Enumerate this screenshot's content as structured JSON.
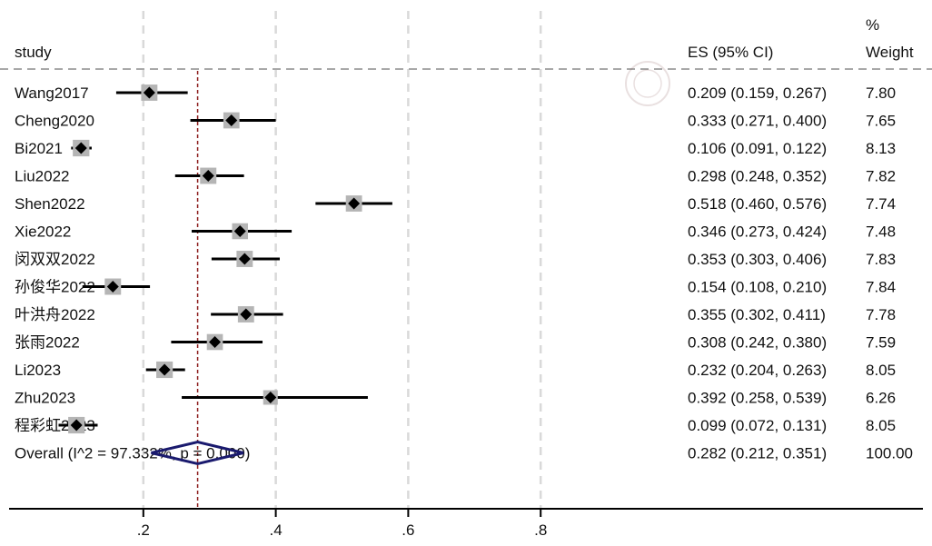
{
  "chart_data": {
    "type": "forest",
    "headers": {
      "study": "study",
      "es": "ES (95% CI)",
      "weight_top": "%",
      "weight_bottom": "Weight"
    },
    "xlim": [
      0,
      0.8
    ],
    "xticks": [
      0.2,
      0.4,
      0.6,
      0.8
    ],
    "xtick_labels": [
      ".2",
      ".4",
      ".6",
      ".8"
    ],
    "reference_line": 0.282,
    "grid": true,
    "colors": {
      "point": "#000000",
      "weight_box": "#b5b5b5",
      "ci": "#000000",
      "reference": "#8b1a1a",
      "diamond": "#1a1a6e",
      "grid": "#d9d9d9"
    },
    "studies": [
      {
        "label": "Wang2017",
        "es": 0.209,
        "lo": 0.159,
        "hi": 0.267,
        "es_text": "0.209 (0.159, 0.267)",
        "weight": 7.8,
        "weight_text": "7.80"
      },
      {
        "label": "Cheng2020",
        "es": 0.333,
        "lo": 0.271,
        "hi": 0.4,
        "es_text": "0.333 (0.271, 0.400)",
        "weight": 7.65,
        "weight_text": "7.65"
      },
      {
        "label": "Bi2021",
        "es": 0.106,
        "lo": 0.091,
        "hi": 0.122,
        "es_text": "0.106 (0.091, 0.122)",
        "weight": 8.13,
        "weight_text": "8.13"
      },
      {
        "label": "Liu2022",
        "es": 0.298,
        "lo": 0.248,
        "hi": 0.352,
        "es_text": "0.298 (0.248, 0.352)",
        "weight": 7.82,
        "weight_text": "7.82"
      },
      {
        "label": "Shen2022",
        "es": 0.518,
        "lo": 0.46,
        "hi": 0.576,
        "es_text": "0.518 (0.460, 0.576)",
        "weight": 7.74,
        "weight_text": "7.74"
      },
      {
        "label": "Xie2022",
        "es": 0.346,
        "lo": 0.273,
        "hi": 0.424,
        "es_text": "0.346 (0.273, 0.424)",
        "weight": 7.48,
        "weight_text": "7.48"
      },
      {
        "label": "闵双双2022",
        "es": 0.353,
        "lo": 0.303,
        "hi": 0.406,
        "es_text": "0.353 (0.303, 0.406)",
        "weight": 7.83,
        "weight_text": "7.83"
      },
      {
        "label": "孙俊华2022",
        "es": 0.154,
        "lo": 0.108,
        "hi": 0.21,
        "es_text": "0.154 (0.108, 0.210)",
        "weight": 7.84,
        "weight_text": "7.84"
      },
      {
        "label": "叶洪舟2022",
        "es": 0.355,
        "lo": 0.302,
        "hi": 0.411,
        "es_text": "0.355 (0.302, 0.411)",
        "weight": 7.78,
        "weight_text": "7.78"
      },
      {
        "label": "张雨2022",
        "es": 0.308,
        "lo": 0.242,
        "hi": 0.38,
        "es_text": "0.308 (0.242, 0.380)",
        "weight": 7.59,
        "weight_text": "7.59"
      },
      {
        "label": "Li2023",
        "es": 0.232,
        "lo": 0.204,
        "hi": 0.263,
        "es_text": "0.232 (0.204, 0.263)",
        "weight": 8.05,
        "weight_text": "8.05"
      },
      {
        "label": "Zhu2023",
        "es": 0.392,
        "lo": 0.258,
        "hi": 0.539,
        "es_text": "0.392 (0.258, 0.539)",
        "weight": 6.26,
        "weight_text": "6.26"
      },
      {
        "label": "程彩虹2023",
        "es": 0.099,
        "lo": 0.072,
        "hi": 0.131,
        "es_text": "0.099 (0.072, 0.131)",
        "weight": 8.05,
        "weight_text": "8.05"
      }
    ],
    "overall": {
      "label": "Overall  (I^2 = 97.332%, p = 0.000)",
      "es": 0.282,
      "lo": 0.212,
      "hi": 0.351,
      "es_text": "0.282 (0.212, 0.351)",
      "weight_text": "100.00"
    }
  }
}
